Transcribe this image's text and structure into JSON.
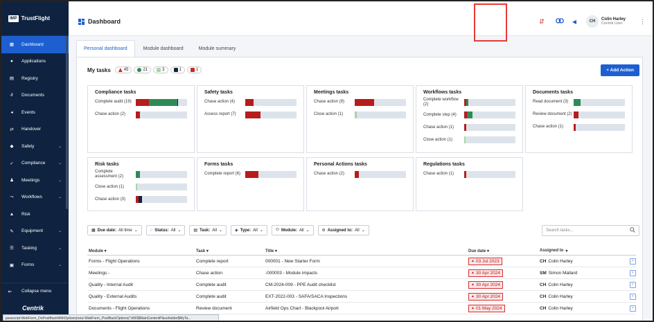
{
  "app": {
    "brand_box": "IMP",
    "brand_name": "TrustFlight",
    "page_title": "Dashboard",
    "footer_logo": "Centrik"
  },
  "sidebar": {
    "items": [
      {
        "label": "Dashboard",
        "icon": "grid-icon",
        "active": true,
        "chevron": false
      },
      {
        "label": "Applications",
        "icon": "user-icon",
        "chevron": false
      },
      {
        "label": "Registry",
        "icon": "book-icon",
        "chevron": false
      },
      {
        "label": "Documents",
        "icon": "paperclip-icon",
        "chevron": false
      },
      {
        "label": "Events",
        "icon": "megaphone-icon",
        "chevron": false
      },
      {
        "label": "Handover",
        "icon": "handover-icon",
        "chevron": false
      },
      {
        "label": "Safety",
        "icon": "shield-icon",
        "chevron": true
      },
      {
        "label": "Compliance",
        "icon": "compliance-icon",
        "chevron": true
      },
      {
        "label": "Meetings",
        "icon": "meetings-icon",
        "chevron": true
      },
      {
        "label": "Workflows",
        "icon": "workflow-icon",
        "chevron": true
      },
      {
        "label": "Risk",
        "icon": "risk-icon",
        "chevron": false
      },
      {
        "label": "Equipment",
        "icon": "wrench-icon",
        "chevron": true
      },
      {
        "label": "Tasking",
        "icon": "tasking-icon",
        "chevron": true
      },
      {
        "label": "Forms",
        "icon": "forms-icon",
        "chevron": true
      }
    ],
    "collapse_label": "Collapse menu"
  },
  "header": {
    "user_initials": "CH",
    "user_name": "Colin Harley",
    "user_role": "Centrik User"
  },
  "tabs": [
    "Personal dashboard",
    "Module dashboard",
    "Module summary"
  ],
  "my_tasks": {
    "label": "My tasks",
    "pills": [
      {
        "value": "45",
        "color": "#d32f2f",
        "kind": "warning"
      },
      {
        "value": "21",
        "color": "#2e8b57",
        "kind": "circle"
      },
      {
        "value": "3",
        "color": "#a5d6a7",
        "kind": "square"
      },
      {
        "value": "1",
        "color": "#0f2340",
        "kind": "square"
      },
      {
        "value": "1",
        "color": "#c62828",
        "kind": "square"
      }
    ],
    "add_action": "+ Add Action"
  },
  "tiles": [
    {
      "title": "Compliance tasks",
      "rows": [
        {
          "label": "Complete audit (19)",
          "segs": [
            {
              "w": 0.26,
              "c": "#b71c1c"
            },
            {
              "w": 0.55,
              "c": "#2e8b57"
            },
            {
              "w": 0.02,
              "c": "#0f2340"
            }
          ]
        },
        {
          "label": "Chase action (2)",
          "segs": [
            {
              "w": 0.08,
              "c": "#b71c1c"
            }
          ]
        }
      ]
    },
    {
      "title": "Safety tasks",
      "rows": [
        {
          "label": "Chase action (4)",
          "segs": [
            {
              "w": 0.16,
              "c": "#b71c1c"
            }
          ]
        },
        {
          "label": "Assess report (7)",
          "segs": [
            {
              "w": 0.3,
              "c": "#b71c1c"
            }
          ]
        }
      ]
    },
    {
      "title": "Meetings tasks",
      "rows": [
        {
          "label": "Chase action (9)",
          "segs": [
            {
              "w": 0.38,
              "c": "#b71c1c"
            }
          ]
        },
        {
          "label": "Close action (1)",
          "segs": [
            {
              "w": 0.04,
              "c": "#a5d6a7"
            }
          ]
        }
      ]
    },
    {
      "title": "Workflows tasks",
      "rows": [
        {
          "label": "Complete workflow (2)",
          "segs": [
            {
              "w": 0.04,
              "c": "#b71c1c"
            },
            {
              "w": 0.04,
              "c": "#2e8b57"
            }
          ]
        },
        {
          "label": "Complete step (4)",
          "segs": [
            {
              "w": 0.06,
              "c": "#b71c1c"
            },
            {
              "w": 0.1,
              "c": "#2e8b57"
            }
          ]
        },
        {
          "label": "Chase action (1)",
          "segs": [
            {
              "w": 0.04,
              "c": "#b71c1c"
            }
          ]
        },
        {
          "label": "Close action (1)",
          "segs": [
            {
              "w": 0.03,
              "c": "#a5d6a7"
            }
          ]
        }
      ]
    },
    {
      "title": "Documents tasks",
      "rows": [
        {
          "label": "Read document (3)",
          "segs": [
            {
              "w": 0.13,
              "c": "#2e8b57"
            }
          ]
        },
        {
          "label": "Review document (2)",
          "segs": [
            {
              "w": 0.09,
              "c": "#b71c1c"
            }
          ]
        },
        {
          "label": "Chase action (1)",
          "segs": [
            {
              "w": 0.04,
              "c": "#b71c1c"
            }
          ]
        }
      ]
    },
    {
      "title": "Risk tasks",
      "rows": [
        {
          "label": "Complete assessment (2)",
          "segs": [
            {
              "w": 0.08,
              "c": "#2e8b57"
            }
          ]
        },
        {
          "label": "Close action (1)",
          "segs": [
            {
              "w": 0.03,
              "c": "#a5d6a7"
            }
          ]
        },
        {
          "label": "Chase action (3)",
          "segs": [
            {
              "w": 0.06,
              "c": "#b71c1c"
            },
            {
              "w": 0.06,
              "c": "#0f2340"
            }
          ]
        }
      ]
    },
    {
      "title": "Forms tasks",
      "rows": [
        {
          "label": "Complete report (6)",
          "segs": [
            {
              "w": 0.26,
              "c": "#b71c1c"
            }
          ]
        }
      ]
    },
    {
      "title": "Personal Actions tasks",
      "rows": [
        {
          "label": "Chase action (2)",
          "segs": [
            {
              "w": 0.08,
              "c": "#b71c1c"
            }
          ]
        }
      ]
    },
    {
      "title": "Regulations tasks",
      "rows": [
        {
          "label": "Chase action (1)",
          "segs": [
            {
              "w": 0.04,
              "c": "#b71c1c"
            }
          ]
        }
      ]
    }
  ],
  "filters": [
    {
      "label": "Due date:",
      "value": "All time",
      "icon": "calendar-icon"
    },
    {
      "label": "Status:",
      "value": "All",
      "icon": "status-icon"
    },
    {
      "label": "Task:",
      "value": "All",
      "icon": "task-icon"
    },
    {
      "label": "Type:",
      "value": "All",
      "icon": "tag-icon"
    },
    {
      "label": "Module:",
      "value": "All",
      "icon": "module-icon"
    },
    {
      "label": "Assigned to:",
      "value": "All",
      "icon": "assignee-icon"
    }
  ],
  "search": {
    "placeholder": "Search tasks..."
  },
  "table": {
    "headers": [
      "Module",
      "Task",
      "Title",
      "Due date",
      "Assigned to"
    ],
    "rows": [
      {
        "module": "Forms - Flight Operations",
        "task": "Complete report",
        "title": "000001 - New Starter Form",
        "due": "03 Jul 2023",
        "ini": "CH",
        "name": "Colin Harley"
      },
      {
        "module": "Meetings -",
        "task": "Chase action",
        "title": "-000003 - Module impacts",
        "due": "30 Apr 2024",
        "ini": "SM",
        "name": "Simon Mallard"
      },
      {
        "module": "Quality - Internal Audit",
        "task": "Complete audit",
        "title": "CM-2024-009 - PPE Audit checklist",
        "due": "30 Apr 2024",
        "ini": "CH",
        "name": "Colin Harley"
      },
      {
        "module": "Quality - External Audits",
        "task": "Complete audit",
        "title": "EXT-2022-003 - SAFA/SACA Inspections",
        "due": "30 Apr 2024",
        "ini": "CH",
        "name": "Colin Harley"
      },
      {
        "module": "Documents - Flight Operations",
        "task": "Review document",
        "title": "Airfield Ops Chart - Blackpool Airport",
        "due": "01 May 2024",
        "ini": "CH",
        "name": "Colin Harley"
      }
    ]
  },
  "status_bar": "javascript:WebForm_DoPostBackWithOptions(new WebForm_PostBackOptions(\"ctl00$MainContentPlaceholder$MyTa..."
}
